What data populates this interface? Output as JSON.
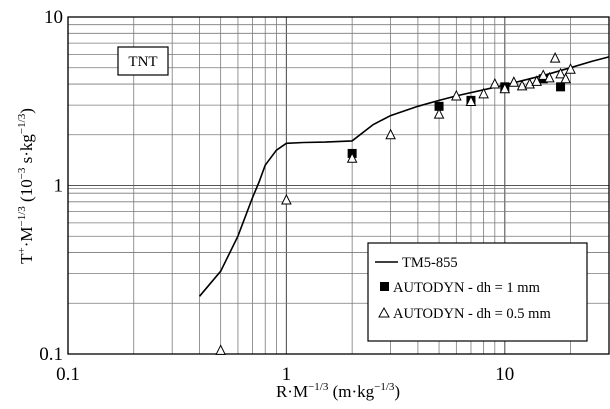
{
  "chart_data": {
    "type": "scatter",
    "x_scale": "log",
    "y_scale": "log",
    "xlim": [
      0.1,
      30
    ],
    "ylim": [
      0.1,
      10
    ],
    "x_ticks": [
      {
        "value": 0.1,
        "label": "0.1"
      },
      {
        "value": 1,
        "label": "1"
      },
      {
        "value": 10,
        "label": "10"
      }
    ],
    "y_ticks": [
      {
        "value": 0.1,
        "label": "0.1"
      },
      {
        "value": 1,
        "label": "1"
      },
      {
        "value": 10,
        "label": "10"
      }
    ],
    "xlabel": "R·M^{-1/3} (m·kg^{-1/3})",
    "ylabel": "T^{+}·M^{-1/3} (10^{-3} s·kg^{-1/3})",
    "grid": true,
    "tag": "TNT",
    "legend_position": "bottom-right",
    "series": [
      {
        "name": "TM5-855",
        "kind": "line",
        "color": "#000000",
        "x": [
          0.4,
          0.5,
          0.6,
          0.7,
          0.75,
          0.8,
          0.9,
          1.0,
          1.2,
          1.5,
          2.0,
          2.5,
          3,
          4,
          5,
          6,
          8,
          10,
          13,
          16,
          20,
          25,
          30
        ],
        "y": [
          0.22,
          0.31,
          0.5,
          0.85,
          1.05,
          1.32,
          1.62,
          1.78,
          1.8,
          1.81,
          1.84,
          2.3,
          2.6,
          2.95,
          3.2,
          3.4,
          3.7,
          3.95,
          4.3,
          4.6,
          5.0,
          5.45,
          5.8
        ]
      },
      {
        "name": "AUTODYN - dh = 1 mm",
        "kind": "marker",
        "marker": "square",
        "color": "#000000",
        "x": [
          2,
          5,
          7,
          10,
          15,
          18
        ],
        "y": [
          1.55,
          2.95,
          3.2,
          3.85,
          4.3,
          3.85
        ]
      },
      {
        "name": "AUTODYN - dh = 0.5 mm",
        "kind": "marker",
        "marker": "triangle",
        "color": "#000000",
        "x": [
          0.5,
          1,
          2,
          3,
          5,
          6,
          7,
          8,
          9,
          10,
          11,
          12,
          13,
          14,
          15,
          16,
          17,
          18,
          19,
          20
        ],
        "y": [
          0.105,
          0.82,
          1.45,
          2.0,
          2.65,
          3.4,
          3.15,
          3.5,
          4.0,
          3.75,
          4.1,
          3.9,
          4.0,
          4.15,
          4.5,
          4.35,
          5.7,
          4.6,
          4.3,
          4.9
        ]
      }
    ]
  }
}
